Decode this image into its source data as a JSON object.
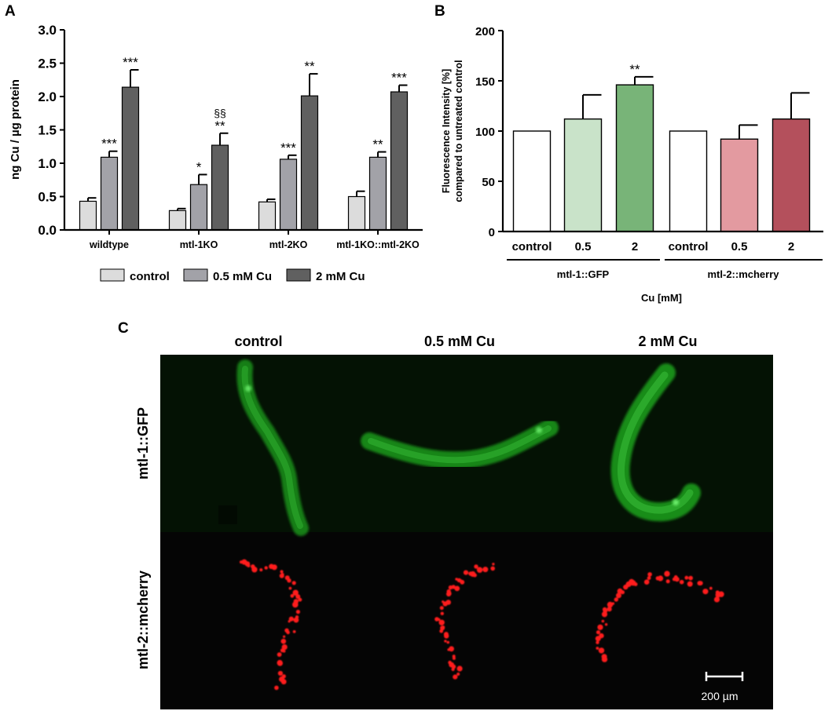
{
  "panel_labels": {
    "a": "A",
    "b": "B",
    "c": "C"
  },
  "chart_data": [
    {
      "type": "bar",
      "panel": "A",
      "ylabel": "ng Cu / µg protein",
      "ylim": [
        0,
        3.0
      ],
      "yticks": [
        "0.0",
        "0.5",
        "1.0",
        "1.5",
        "2.0",
        "2.5",
        "3.0"
      ],
      "categories": [
        "wildtype",
        "mtl-1KO",
        "mtl-2KO",
        "mtl-1KO::mtl-2KO"
      ],
      "legend_position": "bottom",
      "series": [
        {
          "name": "control",
          "color": "#dcdcdc",
          "values": [
            0.43,
            0.29,
            0.42,
            0.5
          ],
          "errors": [
            0.05,
            0.03,
            0.04,
            0.08
          ],
          "annotations": [
            "",
            "",
            "",
            ""
          ]
        },
        {
          "name": "0.5 mM Cu",
          "color": "#a2a2a8",
          "values": [
            1.09,
            0.68,
            1.06,
            1.09
          ],
          "errors": [
            0.09,
            0.15,
            0.06,
            0.08
          ],
          "annotations": [
            "***",
            "*",
            "***",
            "**"
          ]
        },
        {
          "name": "2 mM Cu",
          "color": "#606060",
          "values": [
            2.14,
            1.27,
            2.01,
            2.07
          ],
          "errors": [
            0.26,
            0.18,
            0.33,
            0.1
          ],
          "annotations": [
            "***",
            "**",
            "**",
            "***"
          ],
          "extra_annotations": [
            "",
            "§§",
            "",
            ""
          ]
        }
      ]
    },
    {
      "type": "bar",
      "panel": "B",
      "ylabel_lines": [
        "Fluorescence Intensity [%]",
        "compared to untreated control"
      ],
      "xlabel": "Cu [mM]",
      "ylim": [
        0,
        200
      ],
      "yticks": [
        "0",
        "50",
        "100",
        "150",
        "200"
      ],
      "categories": [
        "control",
        "0.5",
        "2",
        "control",
        "0.5",
        "2"
      ],
      "groups": [
        "mtl-1::GFP",
        "mtl-2::mcherry"
      ],
      "values": [
        100,
        112,
        146,
        100,
        92,
        112
      ],
      "errors": [
        0,
        24,
        8,
        0,
        14,
        26
      ],
      "colors": [
        "#ffffff",
        "#c9e3c9",
        "#78b478",
        "#ffffff",
        "#e39aa0",
        "#b4505c"
      ],
      "annotations": [
        "",
        "",
        "**",
        "",
        "",
        ""
      ]
    }
  ],
  "micrographs": {
    "columns": [
      "control",
      "0.5 mM Cu",
      "2 mM Cu"
    ],
    "rows": [
      "mtl-1::GFP",
      "mtl-2::mcherry"
    ],
    "scale_bar": "200 µm"
  }
}
